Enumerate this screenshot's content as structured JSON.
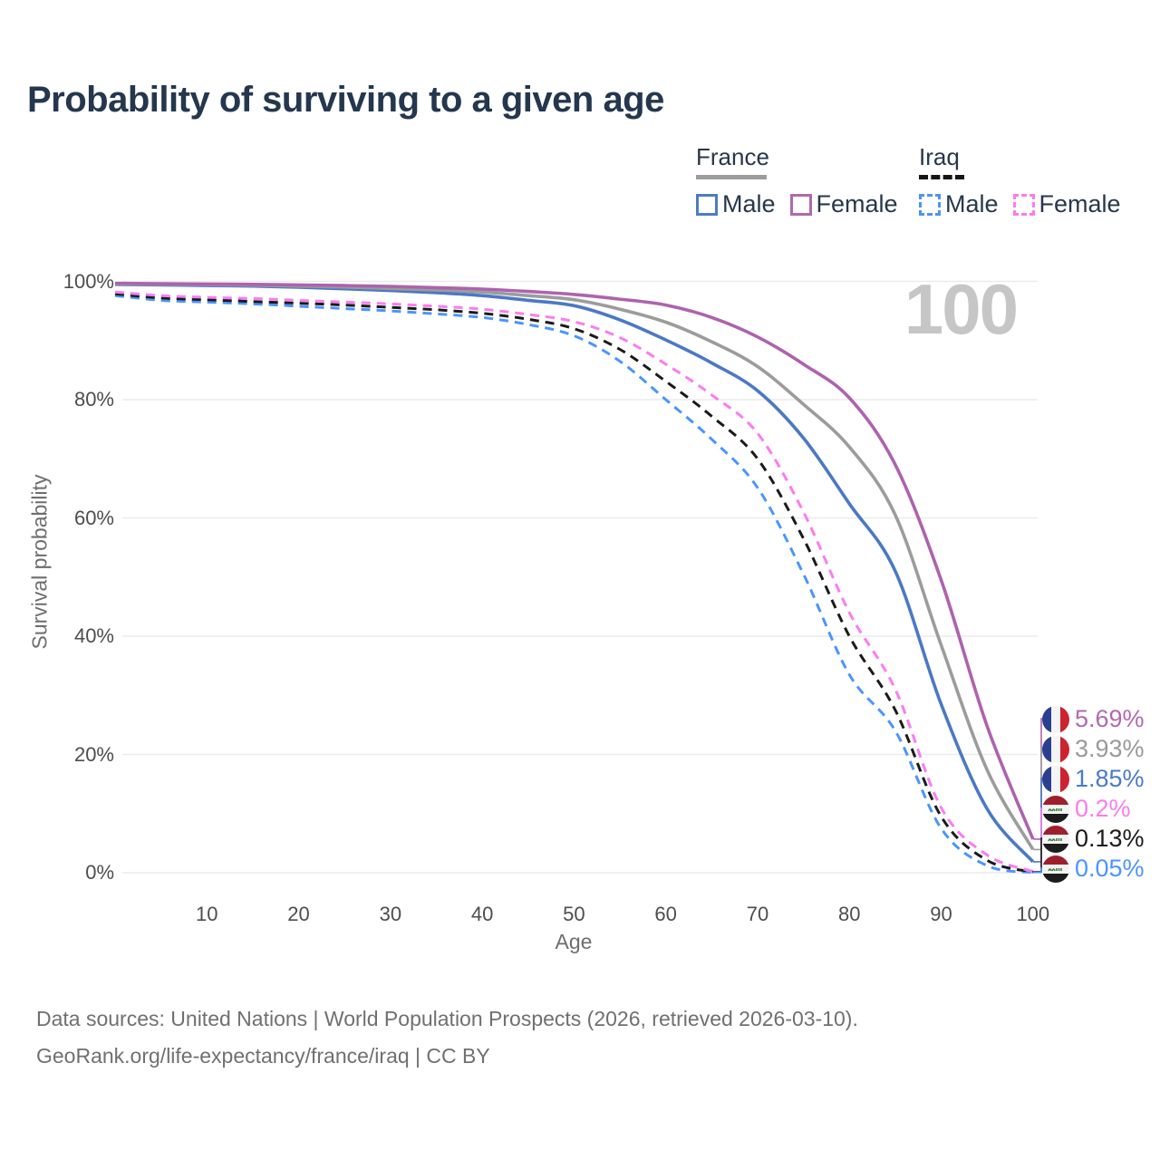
{
  "title": "Probability of surviving to a given age",
  "watermark": "100",
  "legend": {
    "groups": [
      {
        "country": "France",
        "line_style": "solid",
        "total_line_color": "#9c9c9c",
        "items": [
          {
            "label": "Male",
            "color": "#4d7cc3"
          },
          {
            "label": "Female",
            "color": "#b069ad"
          }
        ]
      },
      {
        "country": "Iraq",
        "line_style": "dashed",
        "total_line_color": "#151515",
        "items": [
          {
            "label": "Male",
            "color": "#4d94f5"
          },
          {
            "label": "Female",
            "color": "#fb7cf0"
          }
        ]
      }
    ]
  },
  "chart_data": {
    "type": "line",
    "title": "Probability of surviving to a given age",
    "xlabel": "Age",
    "ylabel": "Survival probability",
    "xlim": [
      0,
      100
    ],
    "ylim": [
      0,
      100
    ],
    "grid": "horizontal",
    "legend_position": "top-right",
    "hover_age": "100",
    "x": [
      0,
      5,
      10,
      15,
      20,
      25,
      30,
      35,
      40,
      45,
      50,
      55,
      60,
      65,
      70,
      75,
      80,
      85,
      90,
      95,
      100
    ],
    "x_ticks": [
      {
        "v": 10,
        "label": "10"
      },
      {
        "v": 20,
        "label": "20"
      },
      {
        "v": 30,
        "label": "30"
      },
      {
        "v": 40,
        "label": "40"
      },
      {
        "v": 50,
        "label": "50"
      },
      {
        "v": 60,
        "label": "60"
      },
      {
        "v": 70,
        "label": "70"
      },
      {
        "v": 80,
        "label": "80"
      },
      {
        "v": 90,
        "label": "90"
      },
      {
        "v": 100,
        "label": "100"
      }
    ],
    "y_ticks": [
      {
        "v": 0,
        "label": "0%"
      },
      {
        "v": 20,
        "label": "20%"
      },
      {
        "v": 40,
        "label": "40%"
      },
      {
        "v": 60,
        "label": "60%"
      },
      {
        "v": 80,
        "label": "80%"
      },
      {
        "v": 100,
        "label": "100%"
      }
    ],
    "series": [
      {
        "name": "France Female",
        "country": "France",
        "sex": "Female",
        "flag": "france",
        "dash": "solid",
        "color": "#ae62ae",
        "label_color": "#b06ab0",
        "end_label": "5.69%",
        "values": [
          99.7,
          99.6,
          99.55,
          99.5,
          99.4,
          99.3,
          99.15,
          98.95,
          98.7,
          98.3,
          97.8,
          97.0,
          96.0,
          93.9,
          90.6,
          86.0,
          80.3,
          69.0,
          49.5,
          24.8,
          5.69
        ]
      },
      {
        "name": "France Both sexes",
        "country": "France",
        "sex": "Both",
        "flag": "france",
        "dash": "solid",
        "color": "#9c9c9c",
        "label_color": "#9a9a9a",
        "end_label": "3.93%",
        "values": [
          99.6,
          99.5,
          99.45,
          99.35,
          99.2,
          99.05,
          98.8,
          98.55,
          98.2,
          97.6,
          96.9,
          95.3,
          93.1,
          89.8,
          85.6,
          79.2,
          72.0,
          60.5,
          38.5,
          17.4,
          3.93
        ]
      },
      {
        "name": "France Male",
        "country": "France",
        "sex": "Male",
        "flag": "france",
        "dash": "solid",
        "color": "#4a79c5",
        "label_color": "#4a7ac9",
        "end_label": "1.85%",
        "values": [
          99.5,
          99.4,
          99.3,
          99.2,
          99.0,
          98.75,
          98.45,
          98.1,
          97.6,
          96.8,
          95.9,
          93.5,
          90.1,
          86.2,
          81.5,
          73.5,
          62.4,
          51.0,
          28.5,
          10.8,
          1.85
        ]
      },
      {
        "name": "Iraq Female",
        "country": "Iraq",
        "sex": "Female",
        "flag": "iraq",
        "dash": "dashed",
        "color": "#fb7cf0",
        "label_color": "#fb7cf0",
        "end_label": "0.2%",
        "values": [
          98.2,
          97.6,
          97.3,
          97.1,
          96.8,
          96.5,
          96.2,
          95.8,
          95.3,
          94.4,
          93.2,
          90.5,
          86.0,
          80.8,
          74.3,
          61.0,
          44.0,
          31.0,
          11.0,
          3.0,
          0.2
        ]
      },
      {
        "name": "Iraq Both sexes",
        "country": "Iraq",
        "sex": "Both",
        "flag": "iraq",
        "dash": "dashed",
        "color": "#1a1a1a",
        "label_color": "#1c1c1c",
        "end_label": "0.13%",
        "values": [
          97.9,
          97.2,
          96.9,
          96.6,
          96.3,
          96.0,
          95.6,
          95.2,
          94.6,
          93.6,
          92.0,
          88.5,
          83.1,
          77.2,
          70.0,
          56.5,
          40.0,
          27.5,
          9.5,
          2.1,
          0.13
        ]
      },
      {
        "name": "Iraq Male",
        "country": "Iraq",
        "sex": "Male",
        "flag": "iraq",
        "dash": "dashed",
        "color": "#4a95ff",
        "label_color": "#4a95ff",
        "end_label": "0.05%",
        "values": [
          97.6,
          96.8,
          96.5,
          96.2,
          95.8,
          95.4,
          95.0,
          94.5,
          93.9,
          92.7,
          90.8,
          86.5,
          80.0,
          73.3,
          65.1,
          50.5,
          33.5,
          24.0,
          7.5,
          1.2,
          0.05
        ]
      }
    ]
  },
  "axis": {
    "x": "Age",
    "y": "Survival probability"
  },
  "footer": {
    "line1": "Data sources: United Nations | World Population Prospects (2026, retrieved 2026-03-10).",
    "line2": "GeoRank.org/life-expectancy/france/iraq | CC BY"
  }
}
